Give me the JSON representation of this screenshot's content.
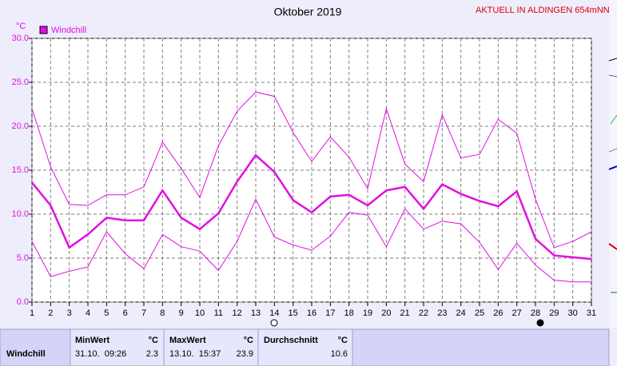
{
  "chart_data": {
    "type": "line",
    "title": "Oktober 2019",
    "header": "AKTUELL IN ALDINGEN 654mNN",
    "y_label": "°C",
    "x": [
      1,
      2,
      3,
      4,
      5,
      6,
      7,
      8,
      9,
      10,
      11,
      12,
      13,
      14,
      15,
      16,
      17,
      18,
      19,
      20,
      21,
      22,
      23,
      24,
      25,
      26,
      27,
      28,
      29,
      30,
      31
    ],
    "xlim": [
      1,
      31
    ],
    "xticks": [
      1,
      2,
      3,
      4,
      5,
      6,
      7,
      8,
      9,
      10,
      11,
      12,
      13,
      14,
      15,
      16,
      17,
      18,
      19,
      20,
      21,
      22,
      23,
      24,
      25,
      26,
      27,
      28,
      29,
      30,
      31
    ],
    "ylim": [
      0,
      30
    ],
    "yticks": [
      {
        "value": 0,
        "label": "0.0"
      },
      {
        "value": 5,
        "label": "5.0"
      },
      {
        "value": 10,
        "label": "10.0"
      },
      {
        "value": 15,
        "label": "15.0"
      },
      {
        "value": 20,
        "label": "20.0"
      },
      {
        "value": 25,
        "label": "25.0"
      },
      {
        "value": 30,
        "label": "30.0"
      }
    ],
    "grid": true,
    "series": [
      {
        "name": "Windchill",
        "color": "#e010e0",
        "values": [
          13.6,
          11.0,
          6.2,
          7.7,
          9.6,
          9.3,
          9.3,
          12.7,
          9.6,
          8.3,
          10.1,
          13.7,
          16.7,
          14.8,
          11.6,
          10.2,
          12.0,
          12.2,
          11.0,
          12.7,
          13.1,
          10.6,
          13.4,
          12.3,
          11.5,
          10.9,
          12.6,
          7.2,
          5.3,
          5.1,
          4.9
        ]
      },
      {
        "color": "#e010e0",
        "values": [
          22.0,
          15.4,
          11.1,
          11.0,
          12.2,
          12.2,
          13.1,
          18.2,
          15.2,
          11.9,
          17.8,
          21.7,
          23.9,
          23.4,
          19.3,
          16.0,
          18.8,
          16.5,
          12.9,
          22.0,
          15.7,
          13.7,
          21.3,
          16.4,
          16.8,
          20.8,
          19.2,
          11.7,
          6.2,
          6.9,
          8.0
        ]
      },
      {
        "color": "#e010e0",
        "values": [
          6.9,
          2.9,
          3.5,
          4.0,
          8.0,
          5.5,
          3.8,
          7.7,
          6.3,
          5.8,
          3.6,
          6.9,
          11.7,
          7.4,
          6.5,
          5.9,
          7.5,
          10.2,
          9.9,
          6.3,
          10.6,
          8.3,
          9.2,
          8.9,
          6.8,
          3.7,
          6.7,
          4.2,
          2.5,
          2.3,
          2.3
        ]
      }
    ]
  },
  "table": {
    "headers": [
      "MinWert",
      "MaxWert",
      "Durchschnitt"
    ],
    "unit": "°C",
    "rows": [
      {
        "label": "Windchill",
        "min_time": "31.10.  09:26",
        "min": "2.3",
        "max_time": "13.10.  15:37",
        "max": "23.9",
        "avg": "10.6"
      }
    ]
  }
}
